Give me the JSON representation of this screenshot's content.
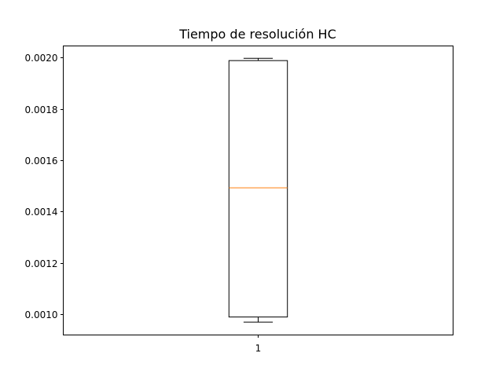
{
  "chart_data": {
    "type": "boxplot",
    "title": "Tiempo de resolución HC",
    "xlabel": "",
    "ylabel": "",
    "categories": [
      "1"
    ],
    "boxes": [
      {
        "category": "1",
        "whisker_low": 0.00097,
        "q1": 0.00099,
        "median": 0.001493,
        "q3": 0.001988,
        "whisker_high": 0.001997
      }
    ],
    "ylim": [
      0.00092,
      0.002045
    ],
    "yticks": [
      0.001,
      0.0012,
      0.0014,
      0.0016,
      0.0018,
      0.002
    ],
    "ytick_labels": [
      "0.0010",
      "0.0012",
      "0.0014",
      "0.0016",
      "0.0018",
      "0.0020"
    ],
    "xtick_labels": [
      "1"
    ],
    "grid": false,
    "colors": {
      "box": "#000000",
      "median": "#ff7f0e",
      "axes": "#000000"
    }
  }
}
